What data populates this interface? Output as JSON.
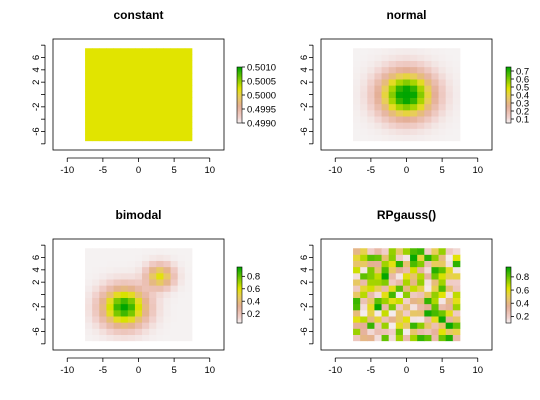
{
  "chart_data": [
    {
      "type": "heatmap",
      "title": "constant",
      "field": "constant",
      "xlim": [
        -12,
        12
      ],
      "ylim": [
        -9,
        9
      ],
      "xticks": [
        -10,
        -5,
        0,
        5,
        10
      ],
      "yticks": [
        -6,
        -2,
        2,
        4,
        6
      ],
      "xlabels": [
        "-10",
        "-5",
        "0",
        "5",
        "10"
      ],
      "ylabels": [
        "-6",
        "-2",
        "2",
        "4",
        "6"
      ],
      "grid_extent": [
        -7.5,
        7.5
      ],
      "value": 0.5,
      "legend": {
        "range": [
          0.499,
          0.501
        ],
        "ticks": [
          0.499,
          0.4995,
          0.5,
          0.5005,
          0.501
        ],
        "labels": [
          "0.4990",
          "0.4995",
          "0.5000",
          "0.5005",
          "0.5010"
        ]
      }
    },
    {
      "type": "heatmap",
      "title": "normal",
      "field": "normal",
      "xlim": [
        -12,
        12
      ],
      "ylim": [
        -9,
        9
      ],
      "xticks": [
        -10,
        -5,
        0,
        5,
        10
      ],
      "yticks": [
        -6,
        -2,
        2,
        4,
        6
      ],
      "xlabels": [
        "-10",
        "-5",
        "0",
        "5",
        "10"
      ],
      "ylabels": [
        "-6",
        "-2",
        "2",
        "4",
        "6"
      ],
      "grid_extent": [
        -7.5,
        7.5
      ],
      "peak": 0.75,
      "center": [
        0,
        0
      ],
      "legend": {
        "range": [
          0.05,
          0.75
        ],
        "ticks": [
          0.1,
          0.2,
          0.3,
          0.4,
          0.5,
          0.6,
          0.7
        ],
        "labels": [
          "0.1",
          "0.2",
          "0.3",
          "0.4",
          "0.5",
          "0.6",
          "0.7"
        ]
      }
    },
    {
      "type": "heatmap",
      "title": "bimodal",
      "field": "bimodal",
      "xlim": [
        -12,
        12
      ],
      "ylim": [
        -9,
        9
      ],
      "xticks": [
        -10,
        -5,
        0,
        5,
        10
      ],
      "yticks": [
        -6,
        -2,
        2,
        4,
        6
      ],
      "xlabels": [
        "-10",
        "-5",
        "0",
        "5",
        "10"
      ],
      "ylabels": [
        "-6",
        "-2",
        "2",
        "4",
        "6"
      ],
      "grid_extent": [
        -7.5,
        7.5
      ],
      "centers": [
        [
          -2,
          -2
        ],
        [
          3,
          3
        ]
      ],
      "legend": {
        "range": [
          0.05,
          0.95
        ],
        "ticks": [
          0.2,
          0.4,
          0.6,
          0.8
        ],
        "labels": [
          "0.2",
          "0.4",
          "0.6",
          "0.8"
        ]
      }
    },
    {
      "type": "heatmap",
      "title": "RPgauss()",
      "field": "random",
      "xlim": [
        -12,
        12
      ],
      "ylim": [
        -9,
        9
      ],
      "xticks": [
        -10,
        -5,
        0,
        5,
        10
      ],
      "yticks": [
        -6,
        -2,
        2,
        4,
        6
      ],
      "xlabels": [
        "-10",
        "-5",
        "0",
        "5",
        "10"
      ],
      "ylabels": [
        "-6",
        "-2",
        "2",
        "4",
        "6"
      ],
      "grid_extent": [
        -7.5,
        7.5
      ],
      "legend": {
        "range": [
          0.1,
          0.95
        ],
        "ticks": [
          0.2,
          0.4,
          0.6,
          0.8
        ],
        "labels": [
          "0.2",
          "0.4",
          "0.6",
          "0.8"
        ]
      }
    }
  ]
}
